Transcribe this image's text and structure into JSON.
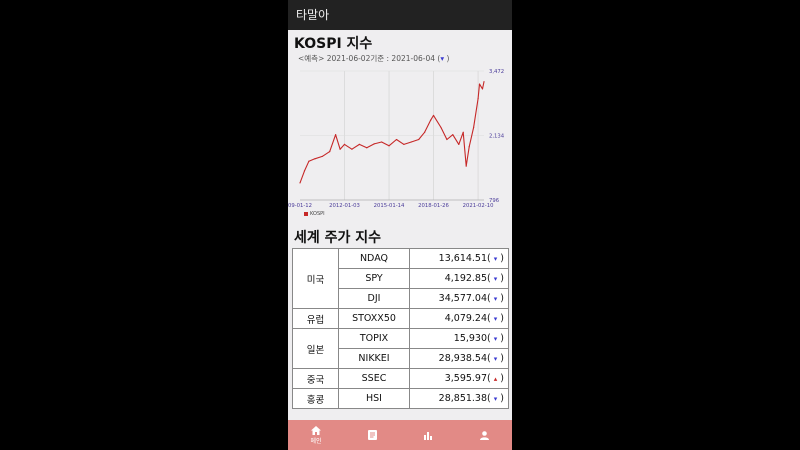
{
  "app": {
    "title": "타말아"
  },
  "kospi": {
    "title": "KOSPI 지수",
    "subtitle_prefix": "<예측> 2021-06-02기준 : 2021-06-04 (",
    "subtitle_dropdown": "▾",
    "subtitle_suffix": " )",
    "legend": "KOSPI"
  },
  "chart_data": {
    "type": "line",
    "title": "",
    "x_tick_labels": [
      "09-01-12",
      "2012-01-03",
      "2015-01-14",
      "2018-01-26",
      "2021-02-10"
    ],
    "y_tick_labels": [
      "796",
      "2,134",
      "3,472"
    ],
    "ylim": [
      796,
      3472
    ],
    "series": [
      {
        "name": "KOSPI",
        "color": "#c62828",
        "x": [
          2009.0,
          2009.3,
          2009.6,
          2010.0,
          2010.5,
          2011.0,
          2011.4,
          2011.7,
          2012.0,
          2012.5,
          2013.0,
          2013.5,
          2014.0,
          2014.5,
          2015.0,
          2015.5,
          2016.0,
          2016.5,
          2017.0,
          2017.4,
          2017.8,
          2018.0,
          2018.5,
          2018.9,
          2019.3,
          2019.7,
          2020.0,
          2020.2,
          2020.4,
          2020.7,
          2021.0,
          2021.1,
          2021.3,
          2021.4
        ],
        "values": [
          1150,
          1400,
          1600,
          1650,
          1700,
          1800,
          2150,
          1850,
          1950,
          1850,
          1950,
          1880,
          1960,
          2000,
          1920,
          2050,
          1950,
          2000,
          2050,
          2200,
          2450,
          2550,
          2300,
          2050,
          2150,
          1950,
          2200,
          1500,
          1900,
          2300,
          2900,
          3200,
          3100,
          3250
        ]
      }
    ],
    "grid": true,
    "xlabel": "",
    "ylabel": ""
  },
  "world": {
    "title": "세계 주가 지수",
    "rows": [
      {
        "region": "미국",
        "span": 3,
        "ticker": "NDAQ",
        "value": "13,614.51",
        "dir": "down"
      },
      {
        "ticker": "SPY",
        "value": "4,192.85",
        "dir": "down"
      },
      {
        "ticker": "DJI",
        "value": "34,577.04",
        "dir": "down"
      },
      {
        "region": "유럽",
        "span": 1,
        "ticker": "STOXX50",
        "value": "4,079.24",
        "dir": "down"
      },
      {
        "region": "일본",
        "span": 2,
        "ticker": "TOPIX",
        "value": "15,930",
        "dir": "down"
      },
      {
        "ticker": "NIKKEI",
        "value": "28,938.54",
        "dir": "down"
      },
      {
        "region": "중국",
        "span": 1,
        "ticker": "SSEC",
        "value": "3,595.97",
        "dir": "up"
      },
      {
        "region": "홍콩",
        "span": 1,
        "ticker": "HSI",
        "value": "28,851.38",
        "dir": "down"
      }
    ],
    "open_paren": "(",
    "close_paren": ")",
    "down_glyph": "▾",
    "up_glyph": "▴"
  },
  "nav": {
    "home_label": "메인"
  },
  "colors": {
    "line": "#c62828",
    "accent": "#3b3bd0",
    "nav_bg": "#e28a86",
    "appbar": "#222222"
  },
  "icons": [
    "home-icon",
    "document-icon",
    "bar-chart-icon",
    "person-icon"
  ]
}
